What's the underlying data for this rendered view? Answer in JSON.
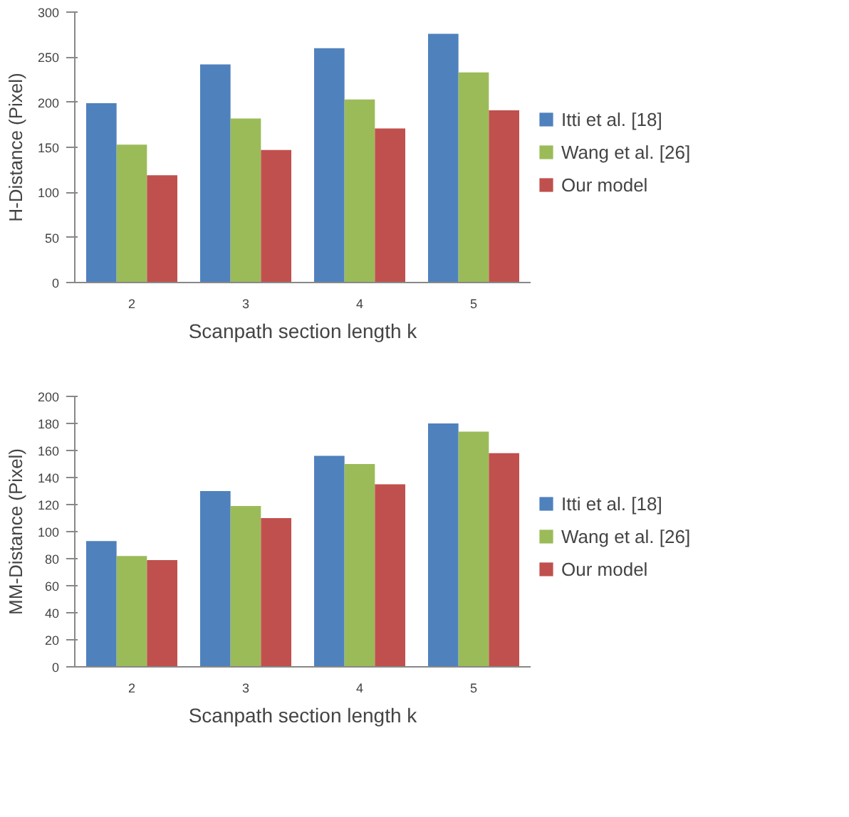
{
  "chart_data": [
    {
      "type": "bar",
      "categories": [
        "2",
        "3",
        "4",
        "5"
      ],
      "xlabel": "Scanpath section length k",
      "ylabel": "H-Distance (Pixel)",
      "ylim": [
        0,
        300
      ],
      "yticks": [
        0,
        50,
        100,
        150,
        200,
        250,
        300
      ],
      "grid": false,
      "legend": "right",
      "series": [
        {
          "name": "Itti et al. [18]",
          "color": "#4f81bd",
          "values": [
            199,
            242,
            260,
            276
          ]
        },
        {
          "name": "Wang et al. [26]",
          "color": "#9bbb59",
          "values": [
            153,
            182,
            203,
            233
          ]
        },
        {
          "name": "Our model",
          "color": "#c0504d",
          "values": [
            119,
            147,
            171,
            191
          ]
        }
      ]
    },
    {
      "type": "bar",
      "categories": [
        "2",
        "3",
        "4",
        "5"
      ],
      "xlabel": "Scanpath section length k",
      "ylabel": "MM-Distance (Pixel)",
      "ylim": [
        0,
        200
      ],
      "yticks": [
        0,
        20,
        40,
        60,
        80,
        100,
        120,
        140,
        160,
        180,
        200
      ],
      "grid": false,
      "legend": "right",
      "series": [
        {
          "name": "Itti et al. [18]",
          "color": "#4f81bd",
          "values": [
            93,
            130,
            156,
            180
          ]
        },
        {
          "name": "Wang et al. [26]",
          "color": "#9bbb59",
          "values": [
            82,
            119,
            150,
            174
          ]
        },
        {
          "name": "Our model",
          "color": "#c0504d",
          "values": [
            79,
            110,
            135,
            158
          ]
        }
      ]
    }
  ]
}
